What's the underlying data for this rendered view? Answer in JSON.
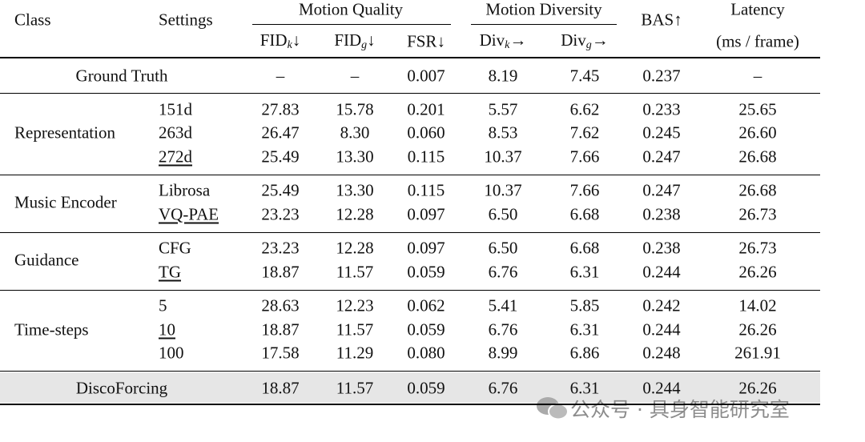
{
  "header": {
    "class": "Class",
    "settings": "Settings",
    "motion_quality": "Motion Quality",
    "motion_diversity": "Motion Diversity",
    "bas": "BAS↑",
    "latency": "Latency",
    "latency_unit": "(ms / frame)",
    "columns": [
      {
        "base": "FID",
        "sub": "k",
        "arrow": "↓"
      },
      {
        "base": "FID",
        "sub": "g",
        "arrow": "↓"
      },
      {
        "base": "FSR",
        "arrow": "↓"
      },
      {
        "base": "Div",
        "sub": "k",
        "arrow": "→"
      },
      {
        "base": "Div",
        "sub": "g",
        "arrow": "→"
      }
    ]
  },
  "ground_truth": {
    "label": "Ground Truth",
    "values": [
      "–",
      "–",
      "0.007",
      "8.19",
      "7.45",
      "0.237",
      "–"
    ]
  },
  "groups": [
    {
      "class": "Representation",
      "rows": [
        {
          "setting": "151d",
          "underline": false,
          "values": [
            "27.83",
            "15.78",
            "0.201",
            "5.57",
            "6.62",
            "0.233",
            "25.65"
          ]
        },
        {
          "setting": "263d",
          "underline": false,
          "values": [
            "26.47",
            "8.30",
            "0.060",
            "8.53",
            "7.62",
            "0.245",
            "26.60"
          ]
        },
        {
          "setting": "272d",
          "underline": true,
          "values": [
            "25.49",
            "13.30",
            "0.115",
            "10.37",
            "7.66",
            "0.247",
            "26.68"
          ]
        }
      ]
    },
    {
      "class": "Music Encoder",
      "rows": [
        {
          "setting": "Librosa",
          "underline": false,
          "values": [
            "25.49",
            "13.30",
            "0.115",
            "10.37",
            "7.66",
            "0.247",
            "26.68"
          ]
        },
        {
          "setting": "VQ-PAE",
          "underline": true,
          "values": [
            "23.23",
            "12.28",
            "0.097",
            "6.50",
            "6.68",
            "0.238",
            "26.73"
          ]
        }
      ]
    },
    {
      "class": "Guidance",
      "rows": [
        {
          "setting": "CFG",
          "underline": false,
          "values": [
            "23.23",
            "12.28",
            "0.097",
            "6.50",
            "6.68",
            "0.238",
            "26.73"
          ]
        },
        {
          "setting": "TG",
          "underline": true,
          "values": [
            "18.87",
            "11.57",
            "0.059",
            "6.76",
            "6.31",
            "0.244",
            "26.26"
          ]
        }
      ]
    },
    {
      "class": "Time-steps",
      "rows": [
        {
          "setting": "5",
          "underline": false,
          "values": [
            "28.63",
            "12.23",
            "0.062",
            "5.41",
            "5.85",
            "0.242",
            "14.02"
          ]
        },
        {
          "setting": "10",
          "underline": true,
          "values": [
            "18.87",
            "11.57",
            "0.059",
            "6.76",
            "6.31",
            "0.244",
            "26.26"
          ]
        },
        {
          "setting": "100",
          "underline": false,
          "values": [
            "17.58",
            "11.29",
            "0.080",
            "8.99",
            "6.86",
            "0.248",
            "261.91"
          ]
        }
      ]
    }
  ],
  "final": {
    "label": "DiscoForcing",
    "values": [
      "18.87",
      "11.57",
      "0.059",
      "6.76",
      "6.31",
      "0.244",
      "26.26"
    ]
  },
  "watermark": "公众号 · 具身智能研究室"
}
